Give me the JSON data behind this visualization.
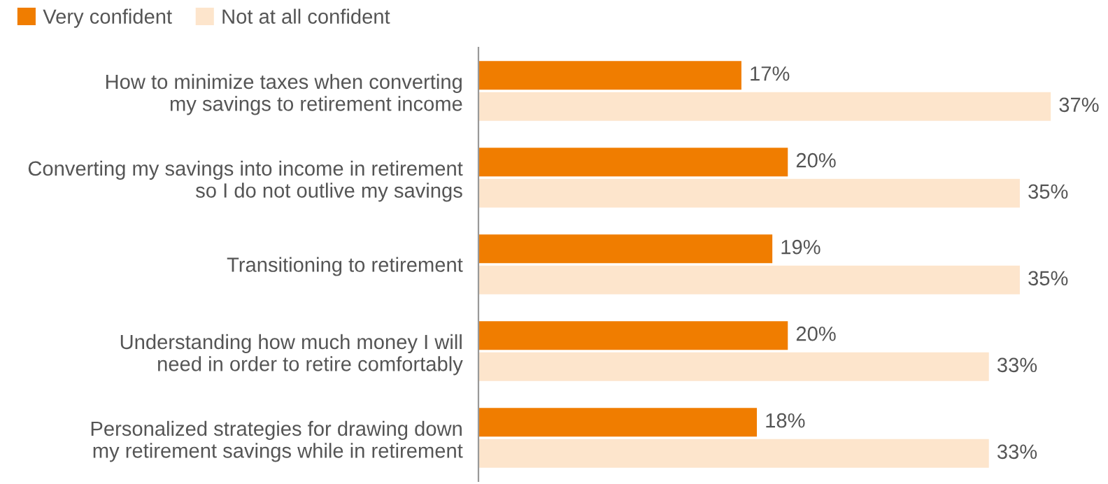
{
  "chart_data": {
    "type": "bar",
    "orientation": "horizontal",
    "legend": "top left",
    "tick_labels": "y",
    "categories": [
      "How to minimize taxes when converting\nmy savings to retirement income",
      "Converting my savings into income in retirement\nso I do not outlive my savings",
      "Transitioning to retirement",
      "Understanding how much money I will\nneed in order to retire comfortably",
      "Personalized strategies for drawing down\nmy retirement savings while in retirement"
    ],
    "series": [
      {
        "name": "Very confident",
        "color": "#f07d00",
        "values": [
          17,
          20,
          19,
          20,
          18
        ],
        "value_labels": [
          "17%",
          "20%",
          "19%",
          "20%",
          "18%"
        ]
      },
      {
        "name": "Not at all confident",
        "color": "#fde5cc",
        "values": [
          37,
          35,
          35,
          33,
          33
        ],
        "value_labels": [
          "37%",
          "35%",
          "35%",
          "33%",
          "33%"
        ]
      }
    ]
  }
}
